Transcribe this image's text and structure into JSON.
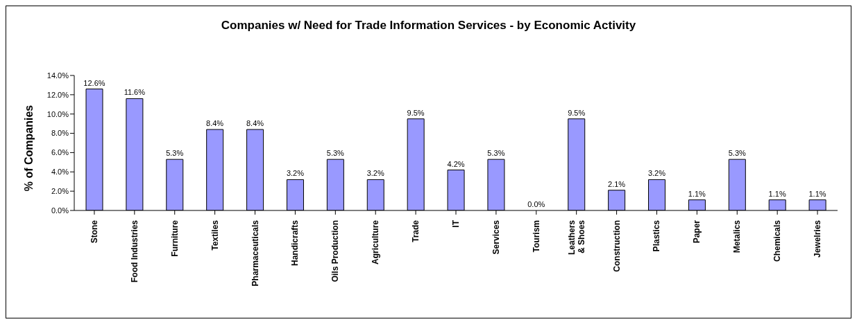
{
  "chart_data": {
    "type": "bar",
    "title": "Companies w/ Need for Trade Information Services - by Economic Activity",
    "ylabel": "% of Companies",
    "categories": [
      "Stone",
      "Food Industries",
      "Furniture",
      "Textiles",
      "Pharmaceuticals",
      "Handicrafts",
      "Oils Production",
      "Agriculture",
      "Trade",
      "IT",
      "Services",
      "Tourism",
      "Leathers & Shoes",
      "Construction",
      "Plastics",
      "Paper",
      "Metalics",
      "Chemicals",
      "Jewelries"
    ],
    "values": [
      12.6,
      11.6,
      5.3,
      8.4,
      8.4,
      3.2,
      5.3,
      3.2,
      9.5,
      4.2,
      5.3,
      0,
      9.5,
      2.1,
      3.2,
      1.1,
      5.3,
      1.1,
      1.1
    ],
    "value_labels": [
      "12.6%",
      "11.6%",
      "5.3%",
      "8.4%",
      "8.4%",
      "3.2%",
      "5.3%",
      "3.2%",
      "9.5%",
      "4.2%",
      "5.3%",
      "0.0%",
      "9.5%",
      "2.1%",
      "3.2%",
      "1.1%",
      "5.3%",
      "1.1%",
      "1.1%"
    ],
    "color": "#9999ff",
    "ylim": [
      0,
      14
    ],
    "yticks": [
      {
        "value": 0,
        "label": "0.0%"
      },
      {
        "value": 2,
        "label": "2.0%"
      },
      {
        "value": 4,
        "label": "4.0%"
      },
      {
        "value": 6,
        "label": "6.0%"
      },
      {
        "value": 8,
        "label": "8.0%"
      },
      {
        "value": 10,
        "label": "10.0%"
      },
      {
        "value": 12,
        "label": "12.0%"
      },
      {
        "value": 14,
        "label": "14.0%"
      }
    ],
    "grid": false,
    "legend": false
  }
}
